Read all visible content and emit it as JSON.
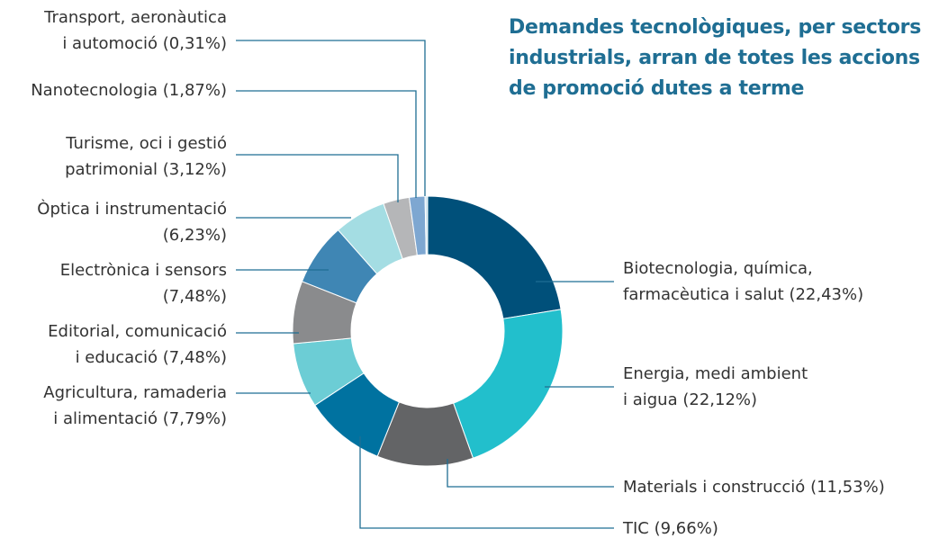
{
  "chart_data": {
    "type": "donut",
    "title": "Demandes tecnològiques, per sectors\nindustrials, arran de totes les accions\nde promoció dutes a terme",
    "categories": [
      "Biotecnologia, química,\nfarmacèutica i salut",
      "Energia, medi ambient\ni aigua",
      "Materials i construcció",
      "TIC",
      "Agricultura, ramaderia\ni alimentació",
      "Editorial, comunicació\ni educació",
      "Electrònica i sensors\n",
      "Òptica i instrumentació\n",
      "Turisme, oci i gestió\npatrimonial",
      "Nanotecnologia",
      "Transport, aeronàutica\ni automoció"
    ],
    "values": [
      22.43,
      22.12,
      11.53,
      9.66,
      7.79,
      7.48,
      7.48,
      6.23,
      3.12,
      1.87,
      0.31
    ],
    "value_labels": [
      "(22,43%)",
      "(22,12%)",
      "(11,53%)",
      "(9,66%)",
      "(7,79%)",
      "(7,48%)",
      "(7,48%)",
      "(6,23%)",
      "(3,12%)",
      "(1,87%)",
      "(0,31%)"
    ],
    "colors": [
      "#00507a",
      "#22bfcc",
      "#636466",
      "#0072a0",
      "#6ccdd5",
      "#8a8b8d",
      "#3f86b4",
      "#a4dde3",
      "#b5b6b8",
      "#7ea7d1",
      "#cfe4f0"
    ]
  }
}
